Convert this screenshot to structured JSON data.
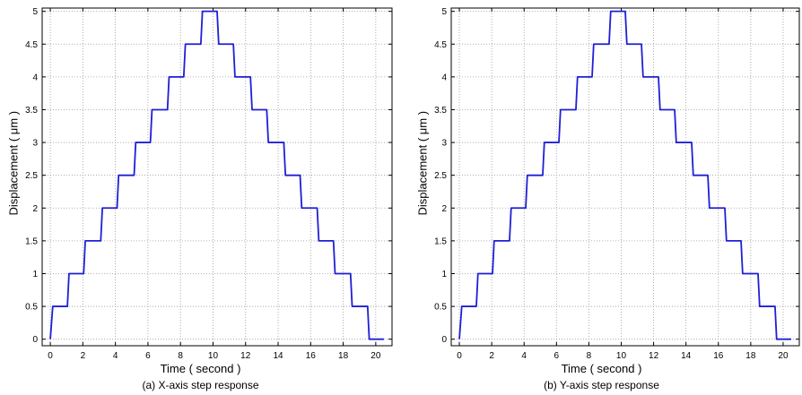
{
  "chart_data": [
    {
      "type": "line",
      "caption": "(a) X-axis step response",
      "xlabel": "Time ( second )",
      "ylabel": "Displacement ( μm )",
      "xlim": [
        -0.5,
        21
      ],
      "ylim": [
        -0.1,
        5.05
      ],
      "xticks": [
        0,
        2,
        4,
        6,
        8,
        10,
        12,
        14,
        16,
        18,
        20
      ],
      "yticks": [
        0,
        0.5,
        1,
        1.5,
        2,
        2.5,
        3,
        3.5,
        4,
        4.5,
        5
      ],
      "grid": true,
      "series": [
        {
          "color": "#1f1fd6",
          "x": [
            0,
            0.15,
            1.05,
            1.15,
            2.05,
            2.15,
            3.1,
            3.2,
            4.1,
            4.2,
            5.15,
            5.25,
            6.15,
            6.25,
            7.2,
            7.3,
            8.2,
            8.3,
            9.25,
            9.35,
            10.25,
            10.35,
            11.25,
            11.35,
            12.3,
            12.4,
            13.3,
            13.4,
            14.35,
            14.45,
            15.35,
            15.45,
            16.4,
            16.5,
            17.4,
            17.5,
            18.45,
            18.55,
            19.5,
            19.6,
            20.5
          ],
          "y": [
            0,
            0.5,
            0.5,
            1,
            1,
            1.5,
            1.5,
            2,
            2,
            2.5,
            2.5,
            3,
            3,
            3.5,
            3.5,
            4,
            4,
            4.5,
            4.5,
            5,
            5,
            4.5,
            4.5,
            4,
            4,
            3.5,
            3.5,
            3,
            3,
            2.5,
            2.5,
            2,
            2,
            1.5,
            1.5,
            1,
            1,
            0.5,
            0.5,
            0,
            0
          ]
        }
      ]
    },
    {
      "type": "line",
      "caption": "(b) Y-axis step response",
      "xlabel": "Time ( second )",
      "ylabel": "Displacement ( μm )",
      "xlim": [
        -0.5,
        21
      ],
      "ylim": [
        -0.1,
        5.05
      ],
      "xticks": [
        0,
        2,
        4,
        6,
        8,
        10,
        12,
        14,
        16,
        18,
        20
      ],
      "yticks": [
        0,
        0.5,
        1,
        1.5,
        2,
        2.5,
        3,
        3.5,
        4,
        4.5,
        5
      ],
      "grid": true,
      "series": [
        {
          "color": "#1f1fd6",
          "x": [
            0,
            0.15,
            1.05,
            1.15,
            2.05,
            2.15,
            3.1,
            3.2,
            4.1,
            4.2,
            5.15,
            5.25,
            6.15,
            6.25,
            7.2,
            7.3,
            8.2,
            8.3,
            9.25,
            9.35,
            10.25,
            10.35,
            11.25,
            11.35,
            12.3,
            12.4,
            13.3,
            13.4,
            14.35,
            14.45,
            15.35,
            15.45,
            16.4,
            16.5,
            17.4,
            17.5,
            18.45,
            18.55,
            19.5,
            19.6,
            20.5
          ],
          "y": [
            0,
            0.5,
            0.5,
            1,
            1,
            1.5,
            1.5,
            2,
            2,
            2.5,
            2.5,
            3,
            3,
            3.5,
            3.5,
            4,
            4,
            4.5,
            4.5,
            5,
            5,
            4.5,
            4.5,
            4,
            4,
            3.5,
            3.5,
            3,
            3,
            2.5,
            2.5,
            2,
            2,
            1.5,
            1.5,
            1,
            1,
            0.5,
            0.5,
            0,
            0
          ]
        }
      ]
    }
  ]
}
